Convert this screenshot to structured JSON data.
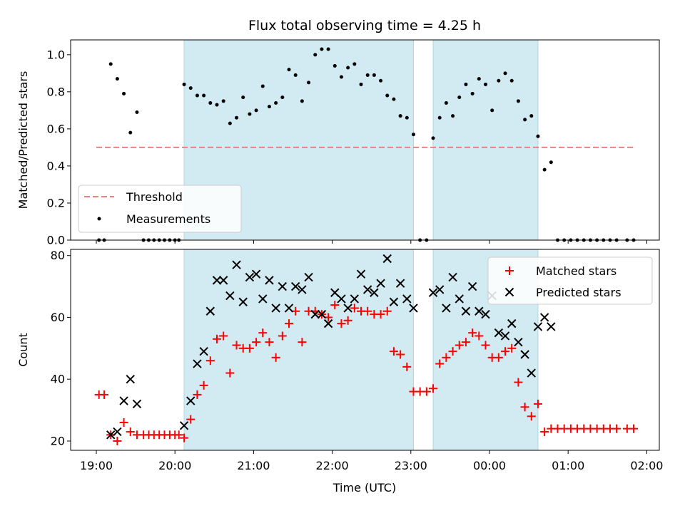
{
  "chart_data": {
    "title": "Flux total observing time = 4.25 h",
    "xlabel": "Time (UTC)",
    "x_tick_labels": [
      "19:00",
      "20:00",
      "21:00",
      "22:00",
      "23:00",
      "00:00",
      "01:00",
      "02:00"
    ],
    "observing_windows": [
      [
        "20:07",
        "23:02"
      ],
      [
        "23:17",
        "00:37"
      ]
    ],
    "colors": {
      "shade": "#add8e6",
      "threshold": "#f08080",
      "measurements": "#000000",
      "matched": "#ff0000",
      "predicted": "#000000"
    },
    "panels": [
      {
        "type": "scatter",
        "ylabel": "Matched/Predicted stars",
        "ylim": [
          0,
          1.08
        ],
        "y_ticks": [
          "0.0",
          "0.2",
          "0.4",
          "0.6",
          "0.8",
          "1.0"
        ],
        "legend_position": "lower-left",
        "threshold": {
          "name": "Threshold",
          "value": 0.5,
          "x_range": [
            "19:00",
            "01:50"
          ]
        },
        "series": [
          {
            "name": "Measurements",
            "marker": "dot",
            "points": [
              [
                "19:02",
                0.0
              ],
              [
                "19:06",
                0.0
              ],
              [
                "19:11",
                0.95
              ],
              [
                "19:16",
                0.87
              ],
              [
                "19:21",
                0.79
              ],
              [
                "19:26",
                0.58
              ],
              [
                "19:31",
                0.69
              ],
              [
                "19:36",
                0.0
              ],
              [
                "19:40",
                0.0
              ],
              [
                "19:44",
                0.0
              ],
              [
                "19:48",
                0.0
              ],
              [
                "19:52",
                0.0
              ],
              [
                "19:56",
                0.0
              ],
              [
                "20:00",
                0.0
              ],
              [
                "20:03",
                0.0
              ],
              [
                "20:07",
                0.84
              ],
              [
                "20:12",
                0.82
              ],
              [
                "20:17",
                0.78
              ],
              [
                "20:22",
                0.78
              ],
              [
                "20:27",
                0.74
              ],
              [
                "20:32",
                0.73
              ],
              [
                "20:37",
                0.75
              ],
              [
                "20:42",
                0.63
              ],
              [
                "20:47",
                0.66
              ],
              [
                "20:52",
                0.77
              ],
              [
                "20:57",
                0.68
              ],
              [
                "21:02",
                0.7
              ],
              [
                "21:07",
                0.83
              ],
              [
                "21:12",
                0.72
              ],
              [
                "21:17",
                0.74
              ],
              [
                "21:22",
                0.77
              ],
              [
                "21:27",
                0.92
              ],
              [
                "21:32",
                0.89
              ],
              [
                "21:37",
                0.75
              ],
              [
                "21:42",
                0.85
              ],
              [
                "21:47",
                1.0
              ],
              [
                "21:52",
                1.03
              ],
              [
                "21:57",
                1.03
              ],
              [
                "22:02",
                0.94
              ],
              [
                "22:07",
                0.88
              ],
              [
                "22:12",
                0.93
              ],
              [
                "22:17",
                0.95
              ],
              [
                "22:22",
                0.84
              ],
              [
                "22:27",
                0.89
              ],
              [
                "22:32",
                0.89
              ],
              [
                "22:37",
                0.86
              ],
              [
                "22:42",
                0.78
              ],
              [
                "22:47",
                0.76
              ],
              [
                "22:52",
                0.67
              ],
              [
                "22:57",
                0.66
              ],
              [
                "23:02",
                0.57
              ],
              [
                "23:07",
                0.0
              ],
              [
                "23:12",
                0.0
              ],
              [
                "23:17",
                0.55
              ],
              [
                "23:22",
                0.66
              ],
              [
                "23:27",
                0.74
              ],
              [
                "23:32",
                0.67
              ],
              [
                "23:37",
                0.77
              ],
              [
                "23:42",
                0.84
              ],
              [
                "23:47",
                0.79
              ],
              [
                "23:52",
                0.87
              ],
              [
                "23:57",
                0.84
              ],
              [
                "00:02",
                0.7
              ],
              [
                "00:07",
                0.86
              ],
              [
                "00:12",
                0.9
              ],
              [
                "00:17",
                0.86
              ],
              [
                "00:22",
                0.75
              ],
              [
                "00:27",
                0.65
              ],
              [
                "00:32",
                0.67
              ],
              [
                "00:37",
                0.56
              ],
              [
                "00:42",
                0.38
              ],
              [
                "00:47",
                0.42
              ],
              [
                "00:52",
                0.0
              ],
              [
                "00:57",
                0.0
              ],
              [
                "01:02",
                0.0
              ],
              [
                "01:07",
                0.0
              ],
              [
                "01:12",
                0.0
              ],
              [
                "01:17",
                0.0
              ],
              [
                "01:22",
                0.0
              ],
              [
                "01:27",
                0.0
              ],
              [
                "01:32",
                0.0
              ],
              [
                "01:37",
                0.0
              ],
              [
                "01:45",
                0.0
              ],
              [
                "01:50",
                0.0
              ]
            ]
          }
        ]
      },
      {
        "type": "scatter",
        "ylabel": "Count",
        "ylim": [
          17,
          82
        ],
        "y_ticks": [
          "20",
          "40",
          "60",
          "80"
        ],
        "legend_position": "upper-right",
        "series": [
          {
            "name": "Matched stars",
            "marker": "plus",
            "points": [
              [
                "19:02",
                35
              ],
              [
                "19:06",
                35
              ],
              [
                "19:11",
                22
              ],
              [
                "19:16",
                20
              ],
              [
                "19:21",
                26
              ],
              [
                "19:26",
                23
              ],
              [
                "19:31",
                22
              ],
              [
                "19:36",
                22
              ],
              [
                "19:40",
                22
              ],
              [
                "19:44",
                22
              ],
              [
                "19:48",
                22
              ],
              [
                "19:52",
                22
              ],
              [
                "19:56",
                22
              ],
              [
                "20:00",
                22
              ],
              [
                "20:03",
                22
              ],
              [
                "20:07",
                21
              ],
              [
                "20:12",
                27
              ],
              [
                "20:17",
                35
              ],
              [
                "20:22",
                38
              ],
              [
                "20:27",
                46
              ],
              [
                "20:32",
                53
              ],
              [
                "20:37",
                54
              ],
              [
                "20:42",
                42
              ],
              [
                "20:47",
                51
              ],
              [
                "20:52",
                50
              ],
              [
                "20:57",
                50
              ],
              [
                "21:02",
                52
              ],
              [
                "21:07",
                55
              ],
              [
                "21:12",
                52
              ],
              [
                "21:17",
                47
              ],
              [
                "21:22",
                54
              ],
              [
                "21:27",
                58
              ],
              [
                "21:32",
                62
              ],
              [
                "21:37",
                52
              ],
              [
                "21:42",
                62
              ],
              [
                "21:47",
                62
              ],
              [
                "21:52",
                61
              ],
              [
                "21:57",
                60
              ],
              [
                "22:02",
                64
              ],
              [
                "22:07",
                58
              ],
              [
                "22:12",
                59
              ],
              [
                "22:17",
                63
              ],
              [
                "22:22",
                62
              ],
              [
                "22:27",
                62
              ],
              [
                "22:32",
                61
              ],
              [
                "22:37",
                61
              ],
              [
                "22:42",
                62
              ],
              [
                "22:47",
                49
              ],
              [
                "22:52",
                48
              ],
              [
                "22:57",
                44
              ],
              [
                "23:02",
                36
              ],
              [
                "23:07",
                36
              ],
              [
                "23:12",
                36
              ],
              [
                "23:17",
                37
              ],
              [
                "23:22",
                45
              ],
              [
                "23:27",
                47
              ],
              [
                "23:32",
                49
              ],
              [
                "23:37",
                51
              ],
              [
                "23:42",
                52
              ],
              [
                "23:47",
                55
              ],
              [
                "23:52",
                54
              ],
              [
                "23:57",
                51
              ],
              [
                "00:02",
                47
              ],
              [
                "00:07",
                47
              ],
              [
                "00:12",
                49
              ],
              [
                "00:17",
                50
              ],
              [
                "00:22",
                39
              ],
              [
                "00:27",
                31
              ],
              [
                "00:32",
                28
              ],
              [
                "00:37",
                32
              ],
              [
                "00:42",
                23
              ],
              [
                "00:47",
                24
              ],
              [
                "00:52",
                24
              ],
              [
                "00:57",
                24
              ],
              [
                "01:02",
                24
              ],
              [
                "01:07",
                24
              ],
              [
                "01:12",
                24
              ],
              [
                "01:17",
                24
              ],
              [
                "01:22",
                24
              ],
              [
                "01:27",
                24
              ],
              [
                "01:32",
                24
              ],
              [
                "01:37",
                24
              ],
              [
                "01:45",
                24
              ],
              [
                "01:50",
                24
              ]
            ]
          },
          {
            "name": "Predicted stars",
            "marker": "x",
            "points": [
              [
                "19:11",
                22
              ],
              [
                "19:16",
                23
              ],
              [
                "19:21",
                33
              ],
              [
                "19:26",
                40
              ],
              [
                "19:31",
                32
              ],
              [
                "20:07",
                25
              ],
              [
                "20:12",
                33
              ],
              [
                "20:17",
                45
              ],
              [
                "20:22",
                49
              ],
              [
                "20:27",
                62
              ],
              [
                "20:32",
                72
              ],
              [
                "20:37",
                72
              ],
              [
                "20:42",
                67
              ],
              [
                "20:47",
                77
              ],
              [
                "20:52",
                65
              ],
              [
                "20:57",
                73
              ],
              [
                "21:02",
                74
              ],
              [
                "21:07",
                66
              ],
              [
                "21:12",
                72
              ],
              [
                "21:17",
                63
              ],
              [
                "21:22",
                70
              ],
              [
                "21:27",
                63
              ],
              [
                "21:32",
                70
              ],
              [
                "21:37",
                69
              ],
              [
                "21:42",
                73
              ],
              [
                "21:47",
                61
              ],
              [
                "21:52",
                61
              ],
              [
                "21:57",
                58
              ],
              [
                "22:02",
                68
              ],
              [
                "22:07",
                66
              ],
              [
                "22:12",
                63
              ],
              [
                "22:17",
                66
              ],
              [
                "22:22",
                74
              ],
              [
                "22:27",
                69
              ],
              [
                "22:32",
                68
              ],
              [
                "22:37",
                71
              ],
              [
                "22:42",
                79
              ],
              [
                "22:47",
                65
              ],
              [
                "22:52",
                71
              ],
              [
                "22:57",
                66
              ],
              [
                "23:02",
                63
              ],
              [
                "23:17",
                68
              ],
              [
                "23:22",
                69
              ],
              [
                "23:27",
                63
              ],
              [
                "23:32",
                73
              ],
              [
                "23:37",
                66
              ],
              [
                "23:42",
                62
              ],
              [
                "23:47",
                70
              ],
              [
                "23:52",
                62
              ],
              [
                "23:57",
                61
              ],
              [
                "00:02",
                67
              ],
              [
                "00:07",
                55
              ],
              [
                "00:12",
                54
              ],
              [
                "00:17",
                58
              ],
              [
                "00:22",
                52
              ],
              [
                "00:27",
                48
              ],
              [
                "00:32",
                42
              ],
              [
                "00:37",
                57
              ],
              [
                "00:42",
                60
              ],
              [
                "00:47",
                57
              ]
            ]
          }
        ]
      }
    ]
  }
}
